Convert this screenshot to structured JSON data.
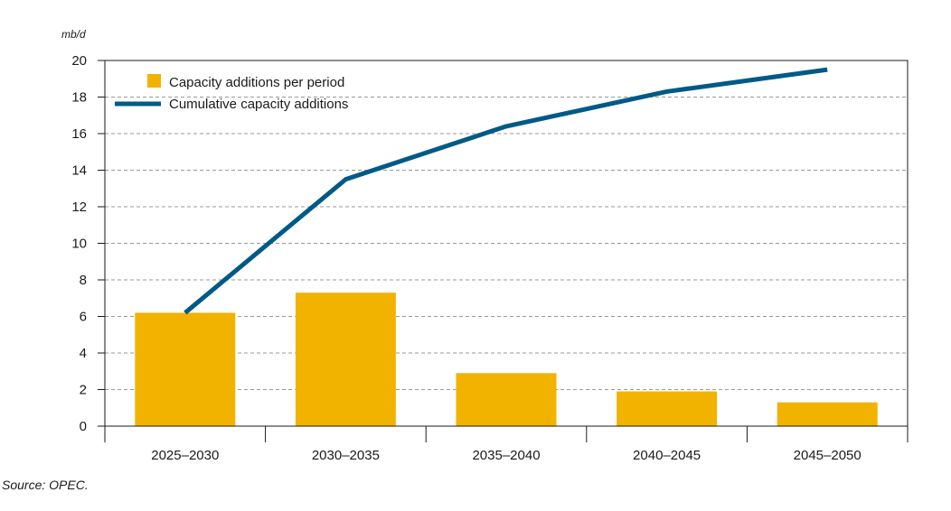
{
  "chart_data": {
    "type": "bar",
    "unit": "mb/d",
    "categories": [
      "2025–2030",
      "2030–2035",
      "2035–2040",
      "2040–2045",
      "2045–2050"
    ],
    "series": [
      {
        "name": "Capacity additions per period",
        "kind": "bar",
        "color": "#f2b200",
        "values": [
          6.2,
          7.3,
          2.9,
          1.9,
          1.3
        ]
      },
      {
        "name": "Cumulative capacity additions",
        "kind": "line",
        "color": "#005a87",
        "values": [
          6.2,
          13.5,
          16.4,
          18.3,
          19.5
        ]
      }
    ],
    "yticks": [
      "0",
      "2",
      "4",
      "6",
      "8",
      "10",
      "12",
      "14",
      "16",
      "18",
      "20"
    ],
    "ylim": [
      0,
      20
    ],
    "grid": true,
    "legend_position": "top-left",
    "source": "Source: OPEC."
  }
}
